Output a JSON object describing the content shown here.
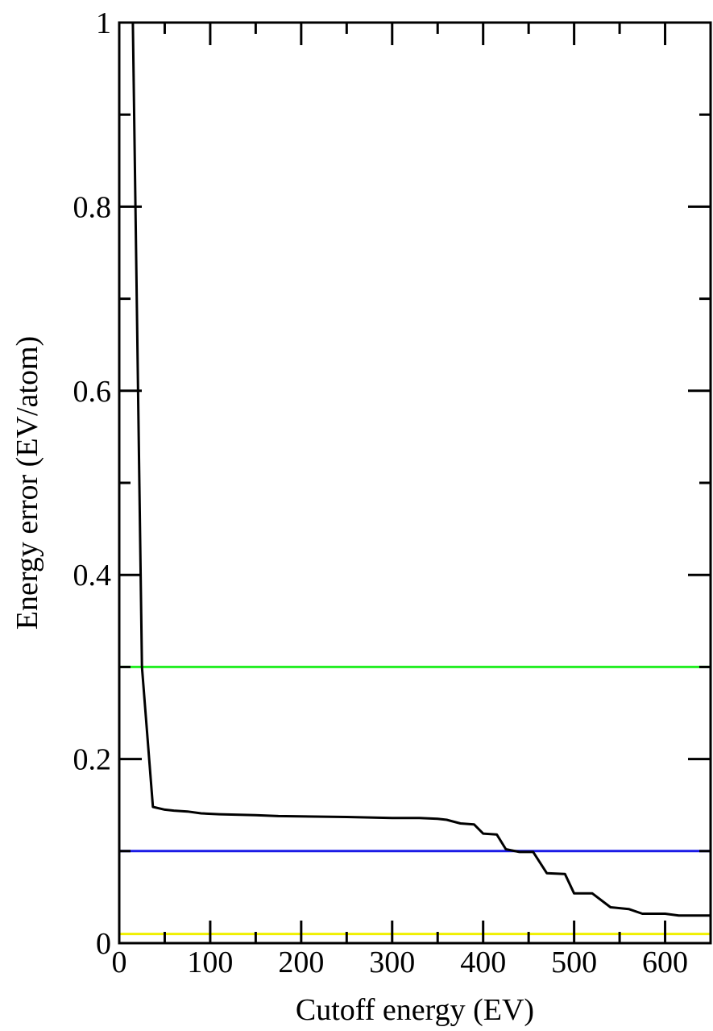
{
  "chart_data": {
    "type": "line",
    "title": "",
    "xlabel": "Cutoff energy (EV)",
    "ylabel": "Energy error (EV/atom)",
    "xlim": [
      0,
      650
    ],
    "ylim": [
      0,
      1
    ],
    "x_ticks": [
      0,
      100,
      200,
      300,
      400,
      500,
      600
    ],
    "x_tick_labels": [
      "0",
      "100",
      "200",
      "300",
      "400",
      "500",
      "600"
    ],
    "y_ticks": [
      0,
      0.2,
      0.4,
      0.6,
      0.8,
      1
    ],
    "y_tick_labels": [
      "0",
      "0.2",
      "0.4",
      "0.6",
      "0.8",
      "1"
    ],
    "x_minor_step": 50,
    "y_minor_step": 0.1,
    "grid": false,
    "series": [
      {
        "color": "#000000",
        "x": [
          15,
          25,
          37,
          50,
          60,
          75,
          90,
          110,
          150,
          175,
          250,
          300,
          330,
          350,
          360,
          375,
          390,
          400,
          415,
          425,
          440,
          455,
          470,
          490,
          500,
          520,
          540,
          560,
          575,
          600,
          615,
          650
        ],
        "y": [
          1.0,
          0.3,
          0.148,
          0.145,
          0.144,
          0.143,
          0.141,
          0.14,
          0.139,
          0.138,
          0.137,
          0.136,
          0.136,
          0.135,
          0.134,
          0.13,
          0.129,
          0.119,
          0.118,
          0.102,
          0.099,
          0.099,
          0.076,
          0.075,
          0.054,
          0.054,
          0.039,
          0.037,
          0.032,
          0.032,
          0.03,
          0.03
        ]
      }
    ],
    "reference_lines": [
      {
        "y": 0.3,
        "color": "#22ee22"
      },
      {
        "y": 0.1,
        "color": "#1a1ae6"
      },
      {
        "y": 0.01,
        "color": "#f0f000"
      }
    ]
  }
}
